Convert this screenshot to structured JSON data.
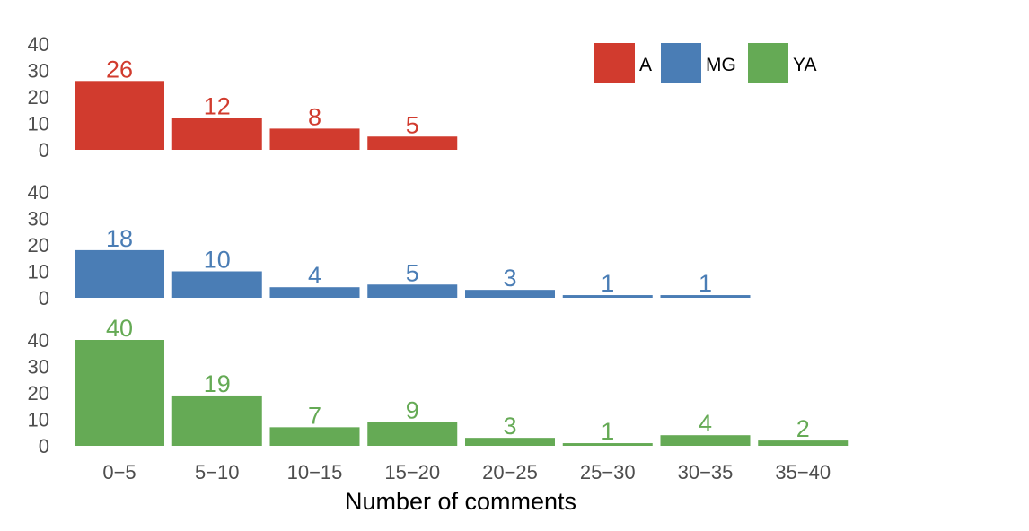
{
  "chart_data": {
    "type": "bar",
    "layout": "faceted",
    "xlabel": "Number of comments",
    "categories": [
      "0−5",
      "5−10",
      "10−15",
      "15−20",
      "20−25",
      "25−30",
      "30−35",
      "35−40"
    ],
    "ylim": [
      0,
      40
    ],
    "yticks": [
      0,
      10,
      20,
      30,
      40
    ],
    "legend_position": "top-right",
    "grid": false,
    "series": [
      {
        "name": "A",
        "color": "#d13b2e",
        "values": [
          26,
          12,
          8,
          5,
          null,
          null,
          null,
          null
        ]
      },
      {
        "name": "MG",
        "color": "#4a7db5",
        "values": [
          18,
          10,
          4,
          5,
          3,
          1,
          1,
          null
        ]
      },
      {
        "name": "YA",
        "color": "#65aa55",
        "values": [
          40,
          19,
          7,
          9,
          3,
          1,
          4,
          2
        ]
      }
    ]
  }
}
